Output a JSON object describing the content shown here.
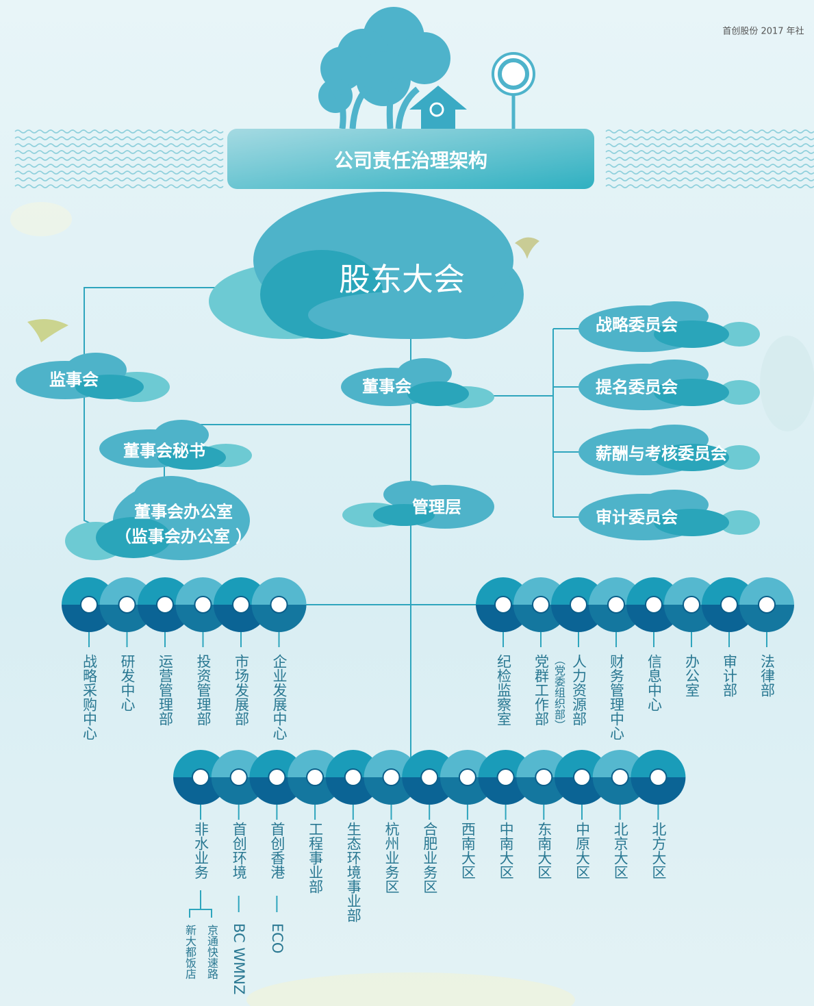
{
  "header": {
    "report": "首创股份 2017 年社"
  },
  "title": "公司责任治理架构",
  "nodes": {
    "shareholders": "股东大会",
    "supervisors": "监事会",
    "board": "董事会",
    "secretary": "董事会秘书",
    "board_office": [
      "董事会办公室",
      "（监事会办公室 ）"
    ],
    "management": "管理层"
  },
  "committees": [
    "战略委员会",
    "提名委员会",
    "薪酬与考核委员会",
    "审计委员会"
  ],
  "left_departments": [
    "战略采购中心",
    "研发中心",
    "运营管理部",
    "投资管理部",
    "市场发展部",
    "企业发展中心"
  ],
  "right_departments": [
    {
      "name": "纪检监察室"
    },
    {
      "name": "党群工作部",
      "note": "（党委组织部）"
    },
    {
      "name": "人力资源部"
    },
    {
      "name": "财务管理中心"
    },
    {
      "name": "信息中心"
    },
    {
      "name": "办公室"
    },
    {
      "name": "审计部"
    },
    {
      "name": "法律部"
    }
  ],
  "business_units": [
    {
      "name": "非水业务",
      "subs": [
        "新大都饭店",
        "京通快速路"
      ]
    },
    {
      "name": "首创环境",
      "subs": [
        "BC WMNZ"
      ]
    },
    {
      "name": "首创香港",
      "subs": [
        "ECO"
      ]
    },
    {
      "name": "工程事业部"
    },
    {
      "name": "生态环境事业部"
    },
    {
      "name": "杭州业务区"
    },
    {
      "name": "合肥业务区"
    },
    {
      "name": "西南大区"
    },
    {
      "name": "中南大区"
    },
    {
      "name": "东南大区"
    },
    {
      "name": "中原大区"
    },
    {
      "name": "北京大区"
    },
    {
      "name": "北方大区"
    }
  ]
}
